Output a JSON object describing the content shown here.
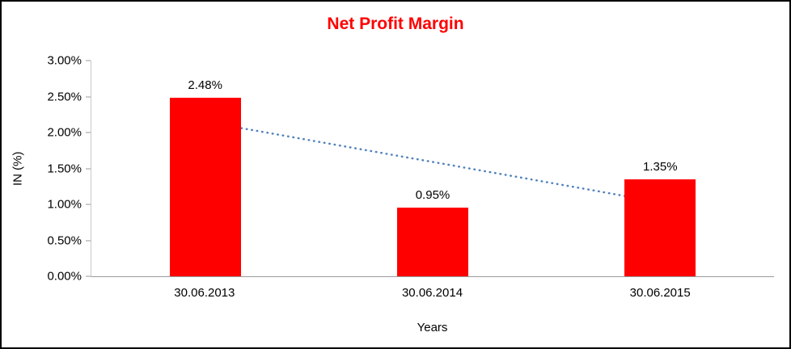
{
  "chart_data": {
    "type": "bar",
    "title": "Net Profit Margin",
    "title_color": "#FF0000",
    "categories": [
      "30.06.2013",
      "30.06.2014",
      "30.06.2015"
    ],
    "values": [
      2.48,
      0.95,
      1.35
    ],
    "data_labels": [
      "2.48%",
      "0.95%",
      "1.35%"
    ],
    "xlabel": "Years",
    "ylabel": "IN (%)",
    "ylim": [
      0,
      3
    ],
    "y_ticks": [
      "3.00%",
      "2.50%",
      "2.00%",
      "1.50%",
      "1.00%",
      "0.50%",
      "0.00%"
    ],
    "bar_color": "#FF0000",
    "grid": false,
    "legend": false,
    "trendline": {
      "type": "linear-dotted",
      "color": "#4F81BD",
      "start_value": 2.15,
      "end_value": 1.03
    }
  }
}
